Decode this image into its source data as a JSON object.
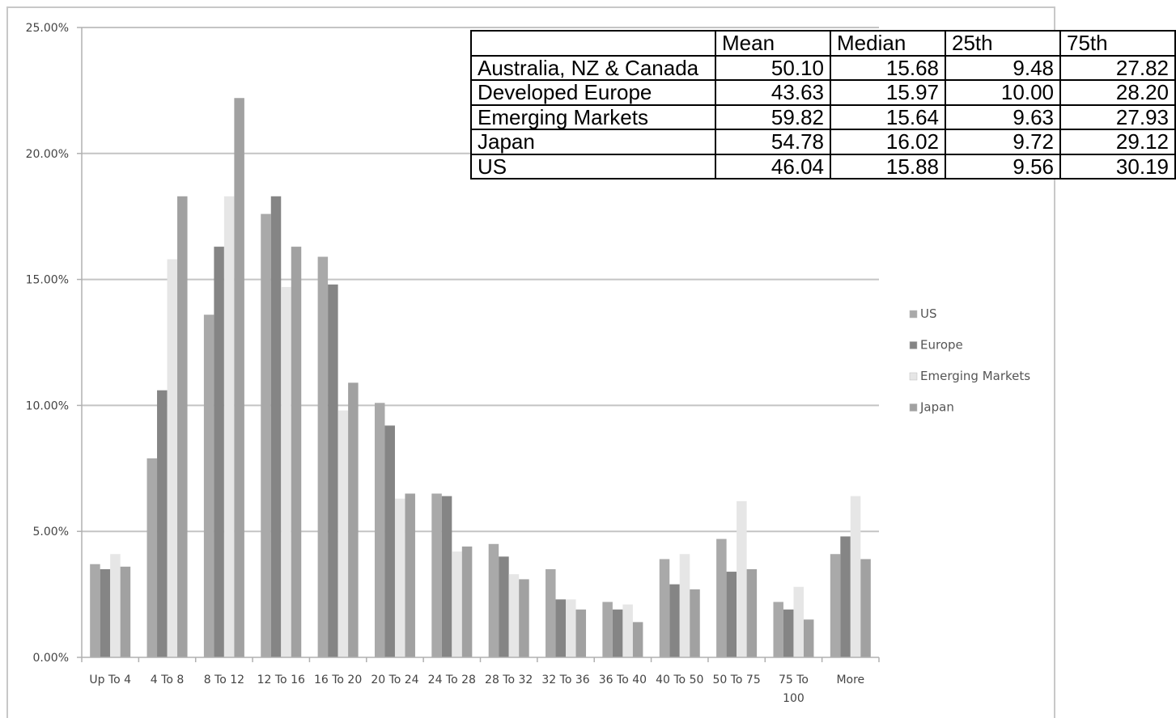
{
  "chart_data": {
    "type": "bar",
    "title": "",
    "xlabel": "",
    "ylabel": "",
    "ylim": [
      0,
      25
    ],
    "yticks": [
      "0.00%",
      "5.00%",
      "10.00%",
      "15.00%",
      "20.00%",
      "25.00%"
    ],
    "ytick_values": [
      0,
      5,
      10,
      15,
      20,
      25
    ],
    "grid": true,
    "legend_position": "right",
    "categories": [
      [
        "Up To 4"
      ],
      [
        "4 To 8"
      ],
      [
        "8 To 12"
      ],
      [
        "12 To 16"
      ],
      [
        "16 To 20"
      ],
      [
        "20 To 24"
      ],
      [
        "24 To 28"
      ],
      [
        "28 To 32"
      ],
      [
        "32 To 36"
      ],
      [
        "36 To 40"
      ],
      [
        "40 To 50"
      ],
      [
        "50 To 75"
      ],
      [
        "75 To",
        "100"
      ],
      [
        "More"
      ]
    ],
    "series": [
      {
        "name": "US",
        "color": "#a9a9a9",
        "values": [
          3.7,
          7.9,
          13.6,
          17.6,
          15.9,
          10.1,
          6.5,
          4.5,
          3.5,
          2.2,
          3.9,
          4.7,
          2.2,
          4.1
        ]
      },
      {
        "name": "Europe",
        "color": "#858585",
        "values": [
          3.5,
          10.6,
          16.3,
          18.3,
          14.8,
          9.2,
          6.4,
          4.0,
          2.3,
          1.9,
          2.9,
          3.4,
          1.9,
          4.8
        ]
      },
      {
        "name": "Emerging Markets",
        "color": "#e6e6e6",
        "values": [
          4.1,
          15.8,
          18.3,
          14.7,
          9.8,
          6.3,
          4.2,
          3.3,
          2.3,
          2.1,
          4.1,
          6.2,
          2.8,
          6.4
        ]
      },
      {
        "name": "Japan",
        "color": "#a1a1a1",
        "values": [
          3.6,
          18.3,
          22.2,
          16.3,
          10.9,
          6.5,
          4.4,
          3.1,
          1.9,
          1.4,
          2.7,
          3.5,
          1.5,
          3.9
        ]
      }
    ]
  },
  "table": {
    "headers": [
      "",
      "Mean",
      "Median",
      "25th",
      "75th"
    ],
    "rows": [
      [
        "Australia, NZ & Canada",
        "50.10",
        "15.68",
        "9.48",
        "27.82"
      ],
      [
        "Developed Europe",
        "43.63",
        "15.97",
        "10.00",
        "28.20"
      ],
      [
        "Emerging Markets",
        "59.82",
        "15.64",
        "9.63",
        "27.93"
      ],
      [
        "Japan",
        "54.78",
        "16.02",
        "9.72",
        "29.12"
      ],
      [
        "US",
        "46.04",
        "15.88",
        "9.56",
        "30.19"
      ]
    ]
  }
}
